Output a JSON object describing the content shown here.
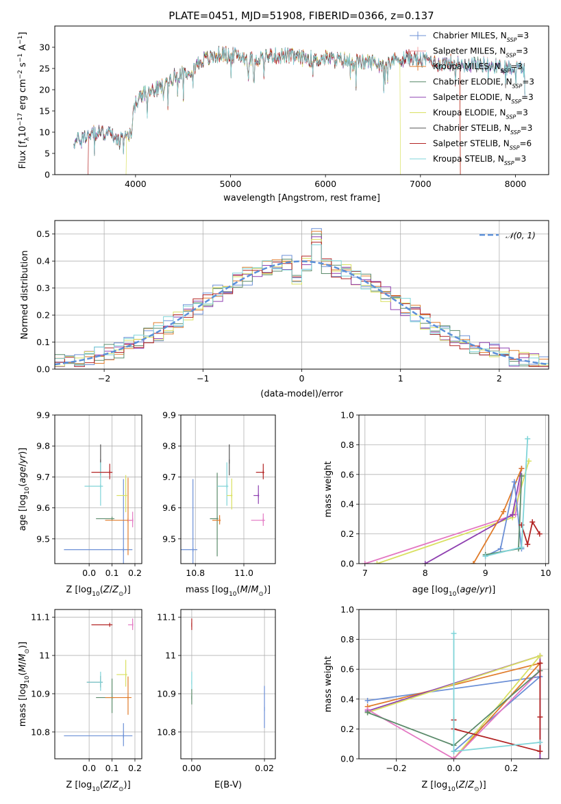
{
  "figure": {
    "title": "PLATE=0451, MJD=51908, FIBERID=0366, z=0.137"
  },
  "colors": {
    "Chabrier MILES": "#6b8fd6",
    "Salpeter MILES": "#f0a0a0",
    "Kroupa MILES": "#e07b2a",
    "Chabrier ELODIE": "#5a8a6a",
    "Salpeter ELODIE": "#8e3fb0",
    "Kroupa ELODIE": "#d9e060",
    "Chabrier STELIB": "#555555",
    "Salpeter STELIB": "#b22222",
    "Kroupa STELIB": "#7fd4d8",
    "Pink": "#e377c2"
  },
  "chart_data": [
    {
      "id": "spectrum",
      "type": "line",
      "xlabel": "wavelength [Angstrom, rest frame]",
      "ylabel": "Flux [f_λ 10^-17 erg cm^-2 s^-1 A^-1]",
      "xlim": [
        3150,
        8350
      ],
      "ylim": [
        0,
        35
      ],
      "xticks": [
        4000,
        5000,
        6000,
        7000,
        8000
      ],
      "yticks": [
        0,
        5,
        10,
        15,
        20,
        25,
        30
      ],
      "legend_position": "upper right",
      "legend": [
        {
          "main": "Chabrier MILES, N",
          "sub": "SSP",
          "tail": "=3"
        },
        {
          "main": "Salpeter MILES, N",
          "sub": "SSP",
          "tail": "=3"
        },
        {
          "main": "Kroupa MILES, N",
          "sub": "SSP",
          "tail": "=3"
        },
        {
          "main": "Chabrier ELODIE, N",
          "sub": "SSP",
          "tail": "=3"
        },
        {
          "main": "Salpeter ELODIE, N",
          "sub": "SSP",
          "tail": "=3"
        },
        {
          "main": "Kroupa ELODIE, N",
          "sub": "SSP",
          "tail": "=3"
        },
        {
          "main": "Chabrier STELIB, N",
          "sub": "SSP",
          "tail": "=3"
        },
        {
          "main": "Salpeter STELIB, N",
          "sub": "SSP",
          "tail": "=6"
        },
        {
          "main": "Kroupa STELIB, N",
          "sub": "SSP",
          "tail": "=3"
        }
      ],
      "legend_keys": [
        "Chabrier MILES",
        "Salpeter MILES",
        "Kroupa MILES",
        "Chabrier ELODIE",
        "Salpeter ELODIE",
        "Kroupa ELODIE",
        "Chabrier STELIB",
        "Salpeter STELIB",
        "Kroupa STELIB"
      ],
      "continuum": [
        [
          3350,
          7.5
        ],
        [
          3500,
          9.5
        ],
        [
          3700,
          10
        ],
        [
          3850,
          8
        ],
        [
          3950,
          10
        ],
        [
          4000,
          17
        ],
        [
          4100,
          19
        ],
        [
          4200,
          20
        ],
        [
          4300,
          21
        ],
        [
          4400,
          23
        ],
        [
          4500,
          24
        ],
        [
          4600,
          25
        ],
        [
          4700,
          27
        ],
        [
          4800,
          27.5
        ],
        [
          4900,
          28.5
        ],
        [
          5000,
          28
        ],
        [
          5100,
          28
        ],
        [
          5200,
          27
        ],
        [
          5300,
          27.5
        ],
        [
          5400,
          28
        ],
        [
          5500,
          28
        ],
        [
          5600,
          28
        ],
        [
          5700,
          27.5
        ],
        [
          5800,
          27.5
        ],
        [
          5900,
          27
        ],
        [
          6000,
          27.5
        ],
        [
          6100,
          27
        ],
        [
          6200,
          27
        ],
        [
          6300,
          26.5
        ],
        [
          6400,
          26.5
        ],
        [
          6500,
          26.5
        ],
        [
          6600,
          26
        ],
        [
          6700,
          27
        ],
        [
          6800,
          27.5
        ],
        [
          6900,
          27.5
        ],
        [
          7000,
          27
        ],
        [
          7100,
          27
        ],
        [
          7200,
          26
        ],
        [
          7300,
          26.5
        ],
        [
          7400,
          26
        ],
        [
          7500,
          26
        ],
        [
          7600,
          26
        ],
        [
          7700,
          26
        ],
        [
          7800,
          25.5
        ],
        [
          7900,
          25.5
        ],
        [
          8000,
          25
        ]
      ],
      "range_by_model": [
        [
          3350,
          8100
        ],
        [
          3350,
          8100
        ],
        [
          3350,
          7420
        ],
        [
          3350,
          8100
        ],
        [
          3350,
          8100
        ],
        [
          3900,
          6790
        ],
        [
          3350,
          8100
        ],
        [
          3500,
          7420
        ],
        [
          3350,
          8100
        ]
      ]
    },
    {
      "id": "residuals",
      "type": "histogram",
      "xlabel": "(data-model)/error",
      "ylabel": "Normed distribution",
      "xlim": [
        -2.5,
        2.5
      ],
      "ylim": [
        0,
        0.55
      ],
      "xticks": [
        -2,
        -1,
        0,
        1,
        2
      ],
      "yticks": [
        0.0,
        0.1,
        0.2,
        0.3,
        0.4,
        0.5
      ],
      "bin_width": 0.1,
      "reference_curve": {
        "label": "𝒩(0, 1)",
        "mean": 0,
        "sigma": 1
      },
      "legend_position": "upper right",
      "grid": true,
      "series_keys": [
        "Chabrier MILES",
        "Kroupa MILES",
        "Chabrier ELODIE",
        "Salpeter ELODIE",
        "Kroupa ELODIE",
        "Salpeter STELIB",
        "Kroupa STELIB"
      ]
    },
    {
      "id": "age_vs_Z",
      "type": "errorbar",
      "xlabel": "Z [log10(Z/Z⊙)]",
      "ylabel": "age [log10(age/yr)]",
      "xlim": [
        -0.15,
        0.23
      ],
      "ylim": [
        9.42,
        9.9
      ],
      "xticks": [
        0.0,
        0.1,
        0.2
      ],
      "xticklabels": [
        "0.0",
        "0.1",
        "0.2"
      ],
      "yticks": [
        9.5,
        9.6,
        9.7,
        9.8,
        9.9
      ],
      "grid": true,
      "points": [
        {
          "key": "Chabrier MILES",
          "x": 0.15,
          "y": 9.465,
          "xerr": 0.26,
          "yerr": 0.415
        },
        {
          "key": "Chabrier STELIB",
          "x": 0.05,
          "y": 9.75,
          "xerr": 0.0,
          "yerr": 0.1
        },
        {
          "key": "Chabrier ELODIE",
          "x": 0.1,
          "y": 9.565,
          "xerr": 0.07,
          "yerr": 0.0
        },
        {
          "key": "Kroupa STELIB",
          "x": 0.05,
          "y": 9.67,
          "xerr": 0.07,
          "yerr": 0.14
        },
        {
          "key": "Salpeter STELIB",
          "x": 0.09,
          "y": 9.715,
          "xerr": 0.08,
          "yerr": 0.05
        },
        {
          "key": "Kroupa ELODIE",
          "x": 0.16,
          "y": 9.64,
          "xerr": 0.04,
          "yerr": 0.12
        },
        {
          "key": "Kroupa MILES",
          "x": 0.17,
          "y": 9.56,
          "xerr": 0.1,
          "yerr": 0.25
        },
        {
          "key": "Pink",
          "x": 0.19,
          "y": 9.56,
          "xerr": 0.02,
          "yerr": 0.05
        }
      ]
    },
    {
      "id": "age_vs_mass",
      "type": "errorbar",
      "xlabel": "mass [log10(M/M⊙)]",
      "ylabel": "",
      "xlim": [
        10.74,
        11.13
      ],
      "ylim": [
        9.42,
        9.9
      ],
      "xticks": [
        10.8,
        11.0
      ],
      "xticklabels": [
        "10.8",
        "11.0"
      ],
      "yticks": [
        9.5,
        9.6,
        9.7,
        9.8,
        9.9
      ],
      "grid": true,
      "points": [
        {
          "key": "Chabrier MILES",
          "x": 10.79,
          "y": 9.465,
          "xerr": 0.12,
          "yerr": 0.415
        },
        {
          "key": "Chabrier STELIB",
          "x": 10.94,
          "y": 9.75,
          "xerr": 0.0,
          "yerr": 0.1
        },
        {
          "key": "Chabrier ELODIE",
          "x": 10.89,
          "y": 9.565,
          "xerr": 0.03,
          "yerr": 0.27
        },
        {
          "key": "Kroupa STELIB",
          "x": 10.93,
          "y": 9.67,
          "xerr": 0.04,
          "yerr": 0.14
        },
        {
          "key": "Salpeter STELIB",
          "x": 11.08,
          "y": 9.715,
          "xerr": 0.03,
          "yerr": 0.05
        },
        {
          "key": "Kroupa ELODIE",
          "x": 10.95,
          "y": 9.64,
          "xerr": 0.02,
          "yerr": 0.1
        },
        {
          "key": "Kroupa MILES",
          "x": 10.9,
          "y": 9.56,
          "xerr": 0.03,
          "yerr": 0.03
        },
        {
          "key": "Salpeter ELODIE",
          "x": 11.06,
          "y": 9.64,
          "xerr": 0.02,
          "yerr": 0.06
        },
        {
          "key": "Pink",
          "x": 11.08,
          "y": 9.56,
          "xerr": 0.05,
          "yerr": 0.04
        }
      ]
    },
    {
      "id": "weight_vs_age",
      "type": "line",
      "xlabel": "age [log10(age/yr)]",
      "ylabel": "mass weight",
      "xlim": [
        6.9,
        10.05
      ],
      "ylim": [
        0,
        1.0
      ],
      "xticks": [
        7,
        8,
        9,
        10
      ],
      "yticks": [
        0.0,
        0.2,
        0.4,
        0.6,
        0.8,
        1.0
      ],
      "grid": true,
      "series": [
        {
          "key": "Pink",
          "x": [
            7.0,
            9.5,
            9.6
          ],
          "y": [
            0.0,
            0.33,
            0.59
          ]
        },
        {
          "key": "Kroupa ELODIE",
          "x": [
            7.2,
            9.45,
            9.72
          ],
          "y": [
            0.0,
            0.31,
            0.69
          ]
        },
        {
          "key": "Salpeter ELODIE",
          "x": [
            8.0,
            9.45,
            9.6
          ],
          "y": [
            0.0,
            0.33,
            0.64
          ]
        },
        {
          "key": "Kroupa MILES",
          "x": [
            8.8,
            9.3,
            9.6
          ],
          "y": [
            0.0,
            0.35,
            0.64
          ]
        },
        {
          "key": "Chabrier MILES",
          "x": [
            9.0,
            9.25,
            9.48,
            9.6
          ],
          "y": [
            0.05,
            0.1,
            0.55,
            0.1
          ]
        },
        {
          "key": "Chabrier ELODIE",
          "x": [
            9.0,
            9.55,
            9.6
          ],
          "y": [
            0.06,
            0.1,
            0.59
          ]
        },
        {
          "key": "Salpeter STELIB",
          "x": [
            9.6,
            9.7,
            9.78,
            9.9
          ],
          "y": [
            0.26,
            0.13,
            0.28,
            0.2
          ]
        },
        {
          "key": "Kroupa STELIB",
          "x": [
            9.0,
            9.6,
            9.7
          ],
          "y": [
            0.05,
            0.11,
            0.84
          ]
        }
      ]
    },
    {
      "id": "mass_vs_Z",
      "type": "errorbar",
      "xlabel": "Z [log10(Z/Z⊙)]",
      "ylabel": "mass [log10(M/M⊙)]",
      "xlim": [
        -0.15,
        0.23
      ],
      "ylim": [
        10.73,
        11.12
      ],
      "xticks": [
        0.0,
        0.1,
        0.2
      ],
      "xticklabels": [
        "0.0",
        "0.1",
        "0.2"
      ],
      "yticks": [
        10.8,
        10.9,
        11.0,
        11.1
      ],
      "grid": true,
      "points": [
        {
          "key": "Chabrier MILES",
          "x": 0.15,
          "y": 10.79,
          "xerr": 0.26,
          "yerr": 0.06
        },
        {
          "key": "Chabrier STELIB",
          "x": 0.05,
          "y": 10.93,
          "xerr": 0.06,
          "yerr": 0.03
        },
        {
          "key": "Chabrier ELODIE",
          "x": 0.1,
          "y": 10.89,
          "xerr": 0.07,
          "yerr": 0.09
        },
        {
          "key": "Kroupa STELIB",
          "x": 0.05,
          "y": 10.93,
          "xerr": 0.06,
          "yerr": 0.05
        },
        {
          "key": "Salpeter STELIB",
          "x": 0.09,
          "y": 11.08,
          "xerr": 0.08,
          "yerr": 0.0
        },
        {
          "key": "Kroupa ELODIE",
          "x": 0.16,
          "y": 10.95,
          "xerr": 0.04,
          "yerr": 0.07
        },
        {
          "key": "Kroupa MILES",
          "x": 0.17,
          "y": 10.89,
          "xerr": 0.1,
          "yerr": 0.1
        },
        {
          "key": "Pink",
          "x": 0.19,
          "y": 11.08,
          "xerr": 0.02,
          "yerr": 0.03
        }
      ]
    },
    {
      "id": "mass_vs_ebv",
      "type": "errorbar",
      "xlabel": "E(B-V)",
      "ylabel": "",
      "xlim": [
        -0.003,
        0.023
      ],
      "ylim": [
        10.73,
        11.12
      ],
      "xticks": [
        0.0,
        0.02
      ],
      "xticklabels": [
        "0.00",
        "0.02"
      ],
      "yticks": [
        10.8,
        10.9,
        11.0,
        11.1
      ],
      "grid": true,
      "points": [
        {
          "key": "Chabrier MILES",
          "x": 0.02,
          "y": 10.86,
          "xerr": 0.0,
          "yerr": 0.11
        },
        {
          "key": "Salpeter STELIB",
          "x": 0.0,
          "y": 11.08,
          "xerr": 0.0,
          "yerr": 0.03
        },
        {
          "key": "Kroupa STELIB",
          "x": 0.0,
          "y": 10.93,
          "xerr": 0.0,
          "yerr": 0.05
        },
        {
          "key": "Chabrier ELODIE",
          "x": 0.0,
          "y": 10.89,
          "xerr": 0.0,
          "yerr": 0.04
        }
      ]
    },
    {
      "id": "weight_vs_Z",
      "type": "line",
      "xlabel": "Z [log10(Z/Z⊙)]",
      "ylabel": "mass weight",
      "xlim": [
        -0.33,
        0.33
      ],
      "ylim": [
        0,
        1.0
      ],
      "xticks": [
        -0.2,
        0.0,
        0.2
      ],
      "xticklabels": [
        "−0.2",
        "0.0",
        "0.2"
      ],
      "yticks": [
        0.0,
        0.2,
        0.4,
        0.6,
        0.8,
        1.0
      ],
      "grid": true,
      "series": [
        {
          "key": "Chabrier MILES",
          "x": [
            -0.3,
            0.3,
            0.0
          ],
          "y": [
            0.39,
            0.55,
            0.05
          ]
        },
        {
          "key": "Kroupa MILES",
          "x": [
            -0.3,
            0.3,
            0.0
          ],
          "y": [
            0.35,
            0.64,
            0.0
          ]
        },
        {
          "key": "Salpeter ELODIE",
          "x": [
            -0.3,
            0.3,
            0.3
          ],
          "y": [
            0.32,
            0.69,
            0.0
          ]
        },
        {
          "key": "Kroupa ELODIE",
          "x": [
            -0.3,
            0.3,
            0.0
          ],
          "y": [
            0.31,
            0.69,
            0.0
          ]
        },
        {
          "key": "Pink",
          "x": [
            -0.3,
            0.0,
            0.3
          ],
          "y": [
            0.33,
            0.0,
            0.59
          ]
        },
        {
          "key": "Chabrier ELODIE",
          "x": [
            -0.3,
            0.0,
            0.3
          ],
          "y": [
            0.31,
            0.09,
            0.59
          ]
        },
        {
          "key": "Salpeter STELIB",
          "x": [
            0.0,
            0.0,
            0.3,
            0.3,
            0.3
          ],
          "y": [
            0.26,
            0.2,
            0.05,
            0.28,
            0.64
          ]
        },
        {
          "key": "Kroupa STELIB",
          "x": [
            0.0,
            0.0,
            0.3,
            0.0
          ],
          "y": [
            0.84,
            0.05,
            0.11,
            0.05
          ]
        }
      ]
    }
  ]
}
